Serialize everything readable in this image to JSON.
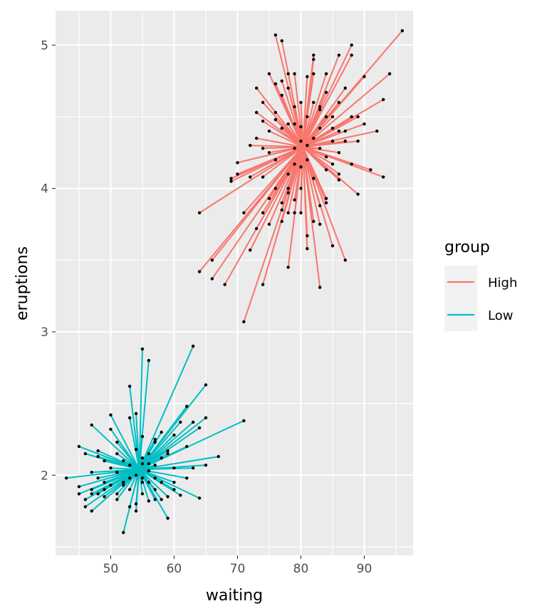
{
  "chart_data": {
    "type": "scatter",
    "subtype": "star-segments-to-group-centroid",
    "xlabel": "waiting",
    "ylabel": "eruptions",
    "xlim": [
      41.3,
      97.7
    ],
    "ylim": [
      1.44,
      5.24
    ],
    "x_ticks": [
      50,
      60,
      70,
      80,
      90
    ],
    "y_ticks": [
      2,
      3,
      4,
      5
    ],
    "grid": true,
    "legend": {
      "title": "group",
      "placement": "right",
      "entries": [
        "High",
        "Low"
      ]
    },
    "series": [
      {
        "name": "High",
        "color": "#F8766D",
        "center": [
          80.3,
          4.29
        ],
        "points": [
          [
            76,
            5.07
          ],
          [
            77,
            5.03
          ],
          [
            82,
            4.93
          ],
          [
            88,
            5.0
          ],
          [
            96,
            5.1
          ],
          [
            94,
            4.8
          ],
          [
            93,
            4.62
          ],
          [
            92,
            4.4
          ],
          [
            93,
            4.08
          ],
          [
            91,
            4.13
          ],
          [
            89,
            3.96
          ],
          [
            87,
            3.5
          ],
          [
            85,
            3.6
          ],
          [
            83,
            3.31
          ],
          [
            81,
            3.58
          ],
          [
            78,
            3.45
          ],
          [
            74,
            3.33
          ],
          [
            71,
            3.07
          ],
          [
            68,
            3.33
          ],
          [
            66,
            3.37
          ],
          [
            64,
            3.42
          ],
          [
            66,
            3.5
          ],
          [
            64,
            3.83
          ],
          [
            69,
            4.07
          ],
          [
            70,
            4.1
          ],
          [
            72,
            4.3
          ],
          [
            73,
            4.7
          ],
          [
            75,
            4.8
          ],
          [
            79,
            4.8
          ],
          [
            82,
            4.8
          ],
          [
            84,
            4.8
          ],
          [
            86,
            4.93
          ],
          [
            88,
            4.93
          ],
          [
            90,
            4.78
          ],
          [
            90,
            4.45
          ],
          [
            89,
            4.33
          ],
          [
            88,
            4.5
          ],
          [
            86,
            4.6
          ],
          [
            87,
            4.7
          ],
          [
            85,
            4.5
          ],
          [
            83,
            4.42
          ],
          [
            84,
            4.13
          ],
          [
            86,
            4.06
          ],
          [
            86,
            4.1
          ],
          [
            84,
            3.9
          ],
          [
            83,
            3.75
          ],
          [
            81,
            3.67
          ],
          [
            79,
            3.83
          ],
          [
            77,
            3.77
          ],
          [
            75,
            3.75
          ],
          [
            73,
            3.72
          ],
          [
            72,
            3.57
          ],
          [
            71,
            3.83
          ],
          [
            74,
            3.83
          ],
          [
            74,
            4.08
          ],
          [
            73,
            4.35
          ],
          [
            74,
            4.47
          ],
          [
            73,
            4.53
          ],
          [
            74,
            4.6
          ],
          [
            76,
            4.73
          ],
          [
            77,
            4.65
          ],
          [
            78,
            4.8
          ],
          [
            79,
            4.57
          ],
          [
            80,
            4.33
          ],
          [
            81,
            4.2
          ],
          [
            82,
            4.07
          ],
          [
            80,
            4.0
          ],
          [
            79,
            3.92
          ],
          [
            78,
            4.0
          ],
          [
            77,
            3.9
          ],
          [
            76,
            4.2
          ],
          [
            75,
            4.25
          ],
          [
            77,
            4.42
          ],
          [
            78,
            4.45
          ],
          [
            80,
            4.6
          ],
          [
            81,
            4.78
          ],
          [
            82,
            4.6
          ],
          [
            82,
            4.9
          ],
          [
            83,
            4.55
          ],
          [
            84,
            4.67
          ],
          [
            85,
            4.33
          ],
          [
            84,
            4.22
          ],
          [
            83,
            4.28
          ],
          [
            82,
            4.35
          ],
          [
            81,
            4.5
          ],
          [
            79,
            4.45
          ],
          [
            78,
            4.7
          ],
          [
            77,
            4.75
          ],
          [
            76,
            4.53
          ],
          [
            75,
            4.4
          ],
          [
            76,
            4.0
          ],
          [
            77,
            3.85
          ],
          [
            78,
            3.83
          ],
          [
            80,
            3.83
          ],
          [
            82,
            3.77
          ],
          [
            83,
            3.88
          ],
          [
            84,
            3.93
          ],
          [
            85,
            4.17
          ],
          [
            87,
            4.4
          ],
          [
            88,
            4.17
          ],
          [
            86,
            4.25
          ],
          [
            81,
            4.3
          ],
          [
            79,
            4.28
          ],
          [
            78,
            4.1
          ],
          [
            79,
            4.17
          ],
          [
            80,
            4.43
          ],
          [
            83,
            4.57
          ],
          [
            84,
            4.5
          ],
          [
            72,
            4.08
          ],
          [
            76,
            4.48
          ],
          [
            74,
            4.28
          ],
          [
            70,
            4.18
          ],
          [
            69,
            4.05
          ],
          [
            75,
            3.93
          ],
          [
            78,
            3.97
          ],
          [
            80,
            4.15
          ],
          [
            85,
            4.42
          ],
          [
            87,
            4.33
          ],
          [
            89,
            4.5
          ],
          [
            86,
            4.4
          ]
        ]
      },
      {
        "name": "Low",
        "color": "#00BFC4",
        "center": [
          54.5,
          2.04
        ],
        "points": [
          [
            43,
            1.98
          ],
          [
            45,
            2.2
          ],
          [
            46,
            2.15
          ],
          [
            47,
            2.35
          ],
          [
            48,
            2.17
          ],
          [
            50,
            2.42
          ],
          [
            51,
            2.23
          ],
          [
            53,
            2.62
          ],
          [
            55,
            2.88
          ],
          [
            56,
            2.8
          ],
          [
            54,
            2.43
          ],
          [
            53,
            2.4
          ],
          [
            55,
            2.27
          ],
          [
            57,
            2.23
          ],
          [
            59,
            2.15
          ],
          [
            61,
            2.37
          ],
          [
            62,
            2.48
          ],
          [
            63,
            2.9
          ],
          [
            65,
            2.63
          ],
          [
            65,
            2.4
          ],
          [
            64,
            2.33
          ],
          [
            63,
            2.37
          ],
          [
            71,
            2.38
          ],
          [
            67,
            2.13
          ],
          [
            65,
            2.07
          ],
          [
            62,
            1.98
          ],
          [
            64,
            1.84
          ],
          [
            61,
            1.86
          ],
          [
            60,
            1.9
          ],
          [
            59,
            1.7
          ],
          [
            57,
            1.83
          ],
          [
            56,
            1.82
          ],
          [
            54,
            1.75
          ],
          [
            53,
            1.78
          ],
          [
            52,
            1.6
          ],
          [
            51,
            1.83
          ],
          [
            49,
            1.85
          ],
          [
            47,
            1.75
          ],
          [
            46,
            1.78
          ],
          [
            45,
            1.87
          ],
          [
            45,
            1.92
          ],
          [
            47,
            1.87
          ],
          [
            48,
            1.87
          ],
          [
            49,
            1.9
          ],
          [
            50,
            1.93
          ],
          [
            51,
            1.87
          ],
          [
            52,
            1.93
          ],
          [
            53,
            1.98
          ],
          [
            54,
            2.0
          ],
          [
            55,
            1.98
          ],
          [
            56,
            2.03
          ],
          [
            57,
            2.07
          ],
          [
            58,
            2.12
          ],
          [
            59,
            2.17
          ],
          [
            60,
            2.05
          ],
          [
            58,
            1.95
          ],
          [
            57,
            1.9
          ],
          [
            56,
            1.95
          ],
          [
            55,
            1.87
          ],
          [
            54,
            1.8
          ],
          [
            53,
            1.9
          ],
          [
            52,
            1.95
          ],
          [
            51,
            2.02
          ],
          [
            50,
            2.05
          ],
          [
            49,
            2.1
          ],
          [
            48,
            2.13
          ],
          [
            47,
            1.9
          ],
          [
            46,
            1.83
          ],
          [
            55,
            2.08
          ],
          [
            56,
            2.15
          ],
          [
            57,
            2.25
          ],
          [
            58,
            2.3
          ],
          [
            60,
            2.28
          ],
          [
            62,
            2.2
          ],
          [
            63,
            2.05
          ],
          [
            60,
            1.95
          ],
          [
            59,
            1.85
          ],
          [
            58,
            1.83
          ],
          [
            55,
            1.95
          ],
          [
            53,
            2.07
          ],
          [
            52,
            2.1
          ],
          [
            51,
            2.15
          ],
          [
            50,
            2.32
          ],
          [
            49,
            1.95
          ],
          [
            48,
            1.98
          ],
          [
            47,
            2.02
          ],
          [
            54,
            2.18
          ],
          [
            55,
            2.12
          ],
          [
            56,
            2.08
          ],
          [
            57,
            1.98
          ]
        ]
      }
    ]
  }
}
